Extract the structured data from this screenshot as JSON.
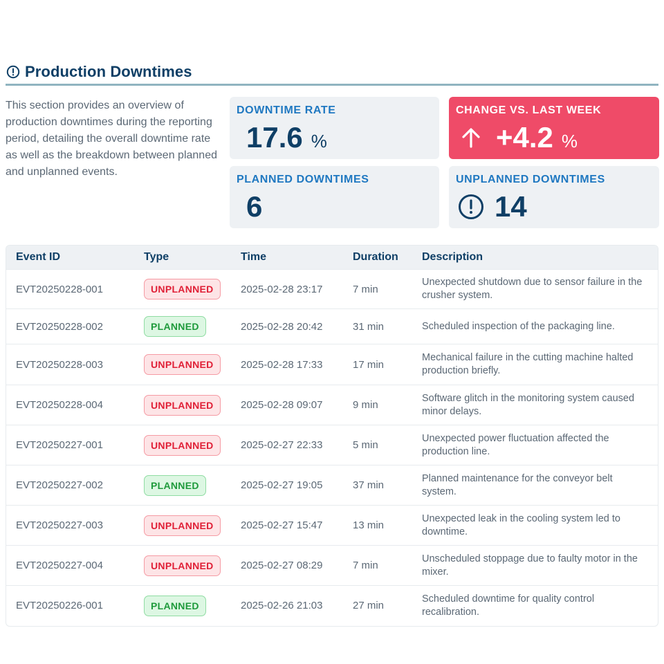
{
  "section": {
    "title": "Production Downtimes",
    "icon": "alert-circle-icon",
    "intro": "This section provides an overview of production downtimes during the reporting period, detailing the overall downtime rate as well as the breakdown between planned and unplanned events."
  },
  "kpis": {
    "downtime_rate": {
      "label": "DOWNTIME RATE",
      "value": "17.6",
      "unit": "%"
    },
    "change": {
      "label": "CHANGE VS. LAST WEEK",
      "value": "+4.2",
      "unit": "%",
      "icon": "arrow-up-icon",
      "color": "#ef4b68"
    },
    "planned": {
      "label": "PLANNED DOWNTIMES",
      "value": "6"
    },
    "unplanned": {
      "label": "UNPLANNED DOWNTIMES",
      "value": "14",
      "icon": "alert-circle-icon"
    }
  },
  "table": {
    "headers": [
      "Event ID",
      "Type",
      "Time",
      "Duration",
      "Description"
    ],
    "rows": [
      {
        "id": "EVT20250228-001",
        "type": "UNPLANNED",
        "time": "2025-02-28 23:17",
        "duration": "7 min",
        "description": "Unexpected shutdown due to sensor failure in the crusher system."
      },
      {
        "id": "EVT20250228-002",
        "type": "PLANNED",
        "time": "2025-02-28 20:42",
        "duration": "31 min",
        "description": "Scheduled inspection of the packaging line."
      },
      {
        "id": "EVT20250228-003",
        "type": "UNPLANNED",
        "time": "2025-02-28 17:33",
        "duration": "17 min",
        "description": "Mechanical failure in the cutting machine halted production briefly."
      },
      {
        "id": "EVT20250228-004",
        "type": "UNPLANNED",
        "time": "2025-02-28 09:07",
        "duration": "9 min",
        "description": "Software glitch in the monitoring system caused minor delays."
      },
      {
        "id": "EVT20250227-001",
        "type": "UNPLANNED",
        "time": "2025-02-27 22:33",
        "duration": "5 min",
        "description": "Unexpected power fluctuation affected the production line."
      },
      {
        "id": "EVT20250227-002",
        "type": "PLANNED",
        "time": "2025-02-27 19:05",
        "duration": "37 min",
        "description": "Planned maintenance for the conveyor belt system."
      },
      {
        "id": "EVT20250227-003",
        "type": "UNPLANNED",
        "time": "2025-02-27 15:47",
        "duration": "13 min",
        "description": "Unexpected leak in the cooling system led to downtime."
      },
      {
        "id": "EVT20250227-004",
        "type": "UNPLANNED",
        "time": "2025-02-27 08:29",
        "duration": "7 min",
        "description": "Unscheduled stoppage due to faulty motor in the mixer."
      },
      {
        "id": "EVT20250226-001",
        "type": "PLANNED",
        "time": "2025-02-26 21:03",
        "duration": "27 min",
        "description": "Scheduled downtime for quality control recalibration."
      }
    ]
  },
  "colors": {
    "title": "#0f3f66",
    "label_blue": "#1f78c1",
    "accent_red": "#ef4b68",
    "unplanned": "#e01f36",
    "planned": "#1e9a3b"
  }
}
